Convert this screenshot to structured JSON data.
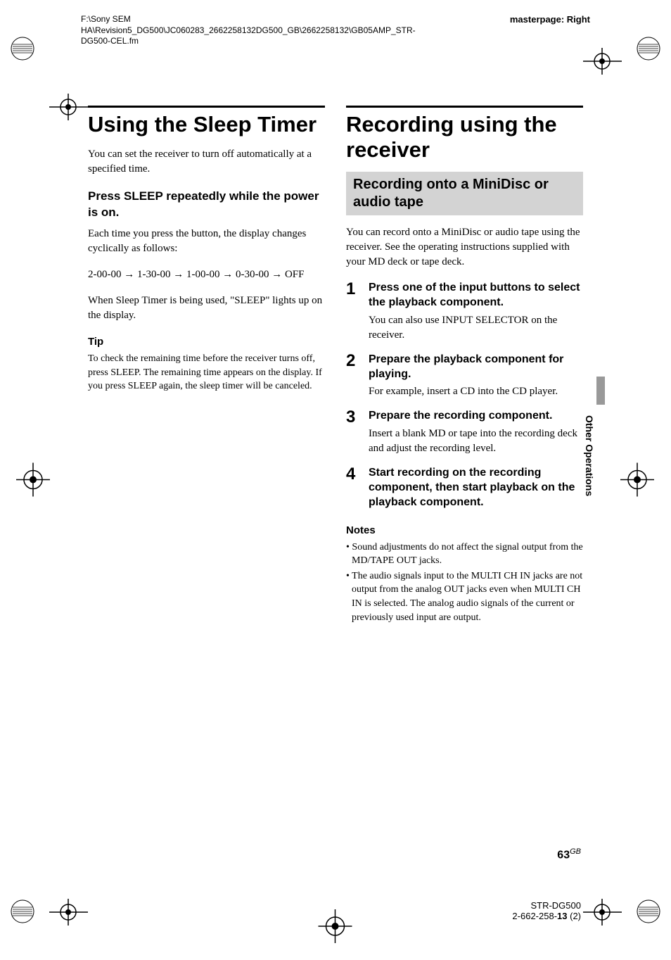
{
  "header": {
    "path": "F:\\Sony SEM HA\\Revision5_DG500\\JC060283_2662258132DG500_GB\\2662258132\\GB05AMP_STR-DG500-CEL.fm",
    "masterpage": "masterpage: Right"
  },
  "left": {
    "title": "Using the Sleep Timer",
    "intro": "You can set the receiver to turn off automatically at a specified time.",
    "sub": "Press SLEEP repeatedly while the power is on.",
    "desc": "Each time you press the button, the display changes cyclically as follows:",
    "seq": "2-00-00 → 1-30-00 → 1-00-00 → 0-30-00 → OFF",
    "after": "When Sleep Timer is being used, \"SLEEP\" lights up on the display.",
    "tip_label": "Tip",
    "tip": "To check the remaining time before the receiver turns off, press SLEEP. The remaining time appears on the display. If you press SLEEP again, the sleep timer will be canceled."
  },
  "right": {
    "title": "Recording using the receiver",
    "shaded": "Recording onto a MiniDisc or audio tape",
    "intro": "You can record onto a MiniDisc or audio tape using the receiver. See the operating instructions supplied with your MD deck or tape deck.",
    "steps": [
      {
        "n": "1",
        "title": "Press one of the input buttons to select the playback component.",
        "desc": "You can also use INPUT SELECTOR on the receiver."
      },
      {
        "n": "2",
        "title": "Prepare the playback component for playing.",
        "desc": "For example, insert a CD into the CD player."
      },
      {
        "n": "3",
        "title": "Prepare the recording component.",
        "desc": "Insert a blank MD or tape into the recording deck and adjust the recording level."
      },
      {
        "n": "4",
        "title": "Start recording on the recording component, then start playback on the playback component.",
        "desc": ""
      }
    ],
    "notes_label": "Notes",
    "notes": [
      "Sound adjustments do not affect the signal output from the MD/TAPE OUT jacks.",
      "The audio signals input to the MULTI CH IN jacks are not output from the analog OUT jacks even when MULTI CH IN is selected. The analog audio signals of the current or previously used input are output."
    ]
  },
  "side_tab": "Other Operations",
  "footer": {
    "page": "63",
    "gb": "GB",
    "model": "STR-DG500",
    "rev_prefix": "2-662-258-",
    "rev_bold": "13",
    "rev_suffix": " (2)"
  }
}
